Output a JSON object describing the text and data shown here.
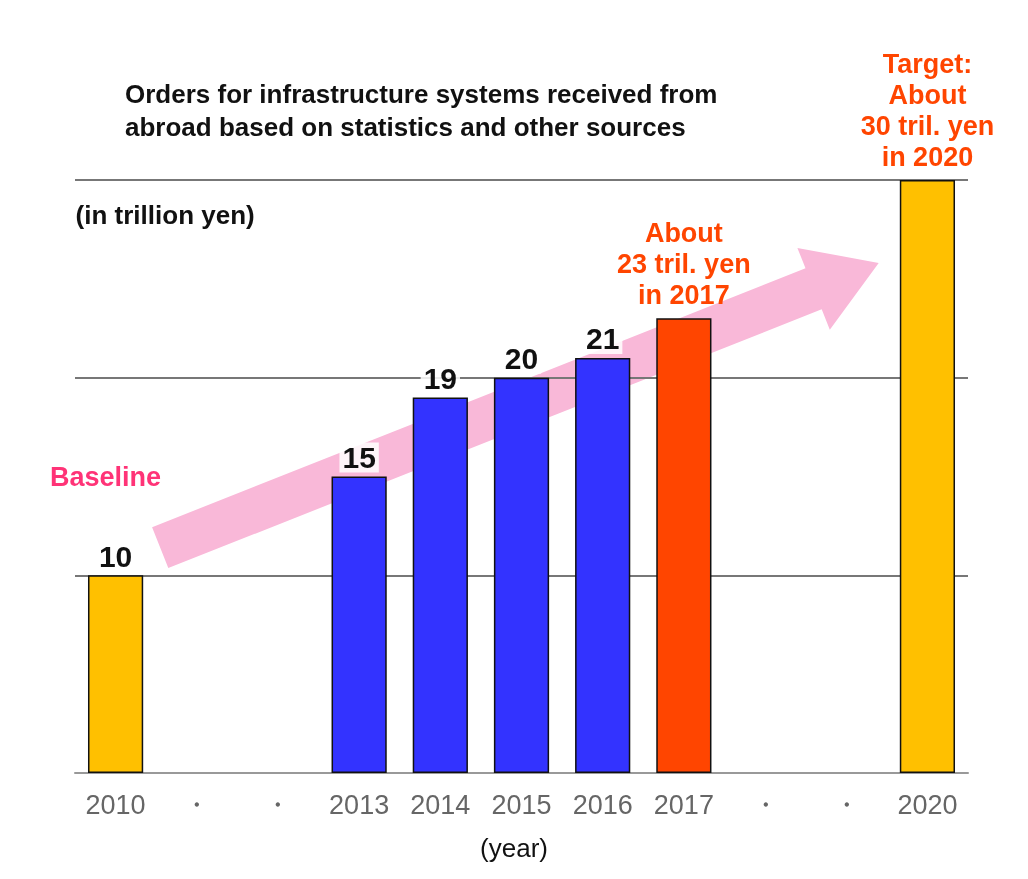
{
  "chart_data": {
    "type": "bar",
    "title": "Orders for infrastructure systems received from abroad based on statistics and other sources",
    "ylabel": "(in trillion yen)",
    "xlabel": "(year)",
    "categories": [
      "2010",
      "・",
      "・",
      "2013",
      "2014",
      "2015",
      "2016",
      "2017",
      "・",
      "・",
      "2020"
    ],
    "values": [
      10,
      null,
      null,
      15,
      19,
      20,
      21,
      23,
      null,
      null,
      30
    ],
    "colors": [
      "#ffc000",
      null,
      null,
      "#3333ff",
      "#3333ff",
      "#3333ff",
      "#3333ff",
      "#ff4500",
      null,
      null,
      "#ffc000"
    ],
    "value_labels": [
      "10",
      null,
      null,
      "15",
      "19",
      "20",
      "21",
      null,
      null,
      null,
      null
    ],
    "ylim": [
      0,
      30
    ],
    "ref_lines": [
      {
        "axis": "y",
        "value": 10,
        "color": "#777777"
      },
      {
        "axis": "y",
        "value": 20,
        "color": "#777777"
      },
      {
        "axis": "y",
        "value": 30,
        "color": "#777777"
      }
    ],
    "tick_labels": "x",
    "annotations": [
      "Baseline",
      {
        "text": "About\n23 tril. yen\nin 2017",
        "x": "2017",
        "y": 23
      },
      {
        "text": "Target:\nAbout\n30 tril. yen\nin 2020",
        "x": "2020",
        "y": 30
      }
    ]
  }
}
